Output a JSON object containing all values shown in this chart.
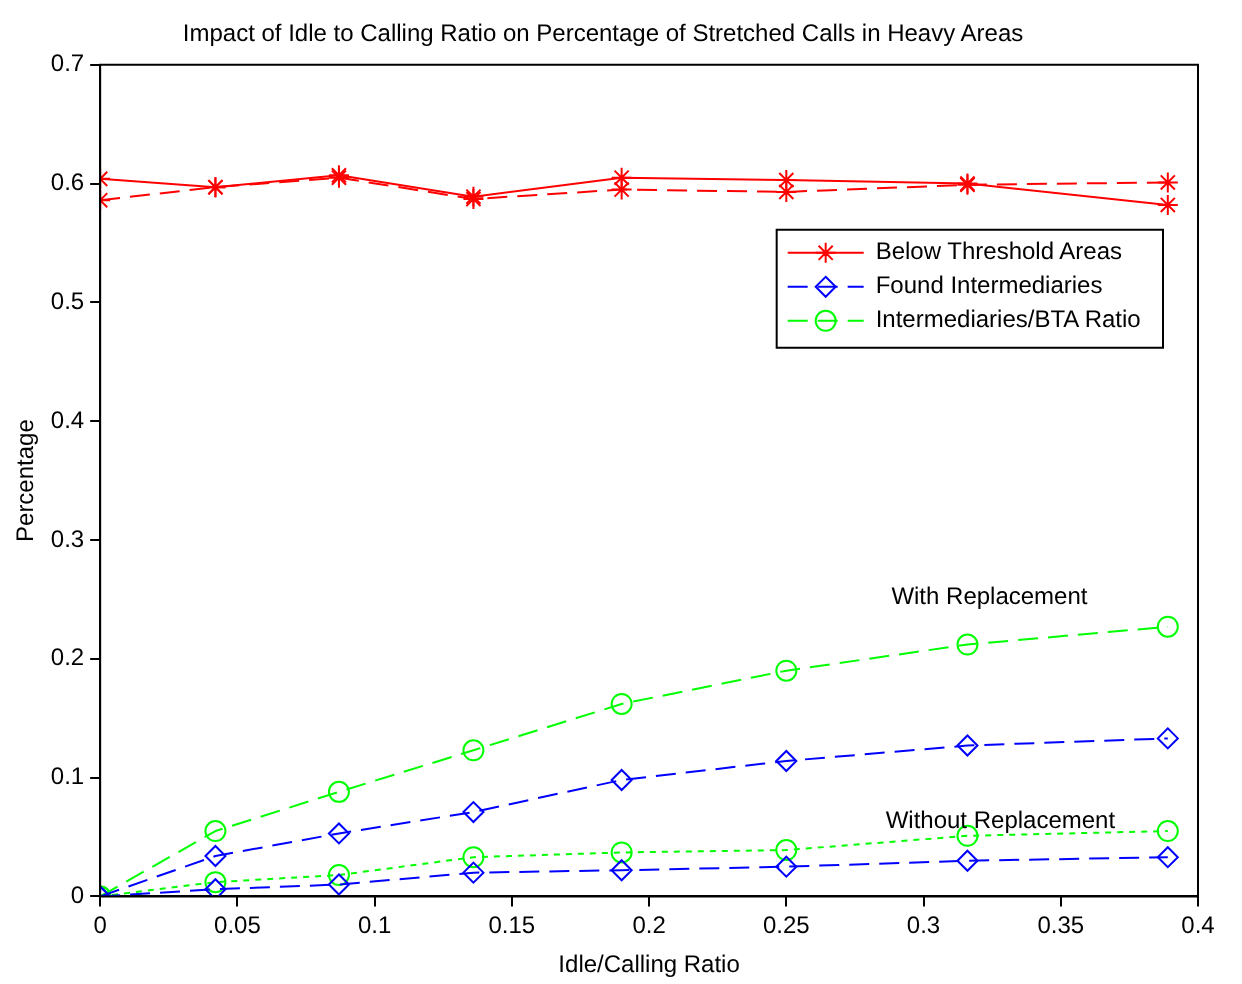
{
  "chart_data": {
    "type": "line",
    "title": "Impact of Idle to Calling Ratio on Percentage of Stretched Calls in Heavy Areas",
    "xlabel": "Idle/Calling Ratio",
    "ylabel": "Percentage",
    "x": [
      0,
      0.042,
      0.087,
      0.136,
      0.19,
      0.25,
      0.316,
      0.389
    ],
    "series": [
      {
        "name": "Below Threshold Areas",
        "color": "#ff0000",
        "marker": "cross",
        "line_style": "solid",
        "values": [
          0.604,
          0.597,
          0.607,
          0.589,
          0.605,
          0.603,
          0.6,
          0.582
        ]
      },
      {
        "name": "Found Intermediaries",
        "color": "#0000ff",
        "marker": "diamond",
        "line_style": "dashed",
        "values": [
          0,
          0.034,
          0.053,
          0.071,
          0.098,
          0.114,
          0.127,
          0.133
        ]
      },
      {
        "name": "Intermediaries/BTA Ratio",
        "color": "#00ff00",
        "marker": "circle",
        "line_style": "dashed",
        "values": [
          0,
          0.055,
          0.088,
          0.123,
          0.162,
          0.19,
          0.212,
          0.227
        ]
      },
      {
        "color": "#ff0000",
        "marker": "cross",
        "line_style": "dashed",
        "values": [
          0.586,
          0.597,
          0.605,
          0.587,
          0.595,
          0.593,
          0.599,
          0.601
        ]
      },
      {
        "color": "#0000ff",
        "marker": "diamond",
        "line_style": "dashed",
        "values": [
          0,
          0.006,
          0.01,
          0.02,
          0.022,
          0.025,
          0.03,
          0.033
        ]
      },
      {
        "color": "#00ff00",
        "marker": "circle",
        "line_style": "dotted",
        "values": [
          0,
          0.012,
          0.018,
          0.033,
          0.037,
          0.039,
          0.051,
          0.055
        ]
      }
    ],
    "annotations": [
      "With Replacement",
      "Without Replacement"
    ],
    "xlim": [
      0,
      0.4
    ],
    "xticks": [
      0,
      0.05,
      0.1,
      0.15,
      0.2,
      0.25,
      0.3,
      0.35,
      0.4
    ],
    "ylim": [
      0,
      0.7
    ],
    "yticks": [
      0,
      0.1,
      0.2,
      0.3,
      0.4,
      0.5,
      0.6,
      0.7
    ],
    "legend": "top right",
    "grid": false
  }
}
